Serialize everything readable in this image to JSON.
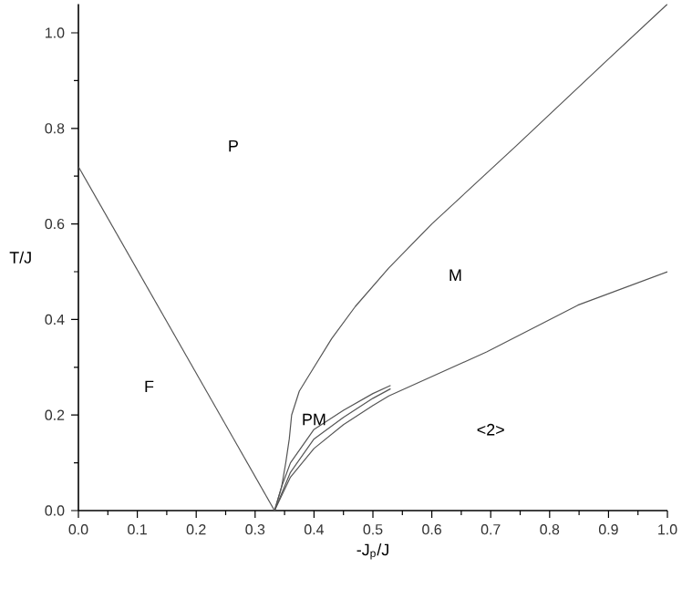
{
  "chart_data": {
    "type": "line",
    "xlabel": "-J$_{p}$/J",
    "ylabel": "T/J",
    "xlim": [
      0,
      1
    ],
    "ylim": [
      0,
      1.06
    ],
    "xticks": [
      {
        "value": 0,
        "label": "0.0"
      },
      0.1,
      0.2,
      0.3,
      0.4,
      0.5,
      0.6,
      0.7,
      0.8,
      0.9,
      {
        "value": 1,
        "label": "1.0"
      }
    ],
    "yticks": [
      {
        "value": 0,
        "label": "0.0"
      },
      0.2,
      0.4,
      0.6,
      0.8,
      {
        "value": 1,
        "label": "1.0"
      }
    ],
    "grid": false,
    "marker": "none",
    "line_style": "solid",
    "series": [
      {
        "color": "#555555",
        "x": [
          0,
          0.333
        ],
        "values": [
          0.72,
          0
        ]
      },
      {
        "color": "#555555",
        "x": [
          0.333,
          0.345,
          0.352,
          0.358,
          0.362,
          0.375,
          0.4,
          0.43,
          0.47,
          0.527,
          0.6,
          0.743,
          0.898,
          1.0
        ],
        "values": [
          0,
          0.05,
          0.1,
          0.15,
          0.2,
          0.25,
          0.3,
          0.36,
          0.427,
          0.508,
          0.6,
          0.763,
          0.943,
          1.06
        ]
      },
      {
        "color": "#555555",
        "x": [
          0.333,
          0.36,
          0.4,
          0.45,
          0.5,
          0.527,
          0.693,
          0.848,
          1.0
        ],
        "values": [
          0,
          0.07,
          0.13,
          0.18,
          0.22,
          0.24,
          0.332,
          0.43,
          0.5
        ]
      },
      {
        "color": "#555555",
        "x": [
          0.333,
          0.345,
          0.36,
          0.4,
          0.45,
          0.5,
          0.53
        ],
        "values": [
          0,
          0.05,
          0.1,
          0.17,
          0.21,
          0.245,
          0.262
        ]
      },
      {
        "color": "#555555",
        "x": [
          0.333,
          0.36,
          0.4,
          0.45,
          0.5,
          0.53
        ],
        "values": [
          0,
          0.08,
          0.15,
          0.195,
          0.235,
          0.255
        ]
      }
    ],
    "annotations": [
      "P",
      "M",
      "F",
      "PM",
      "<2>"
    ]
  }
}
